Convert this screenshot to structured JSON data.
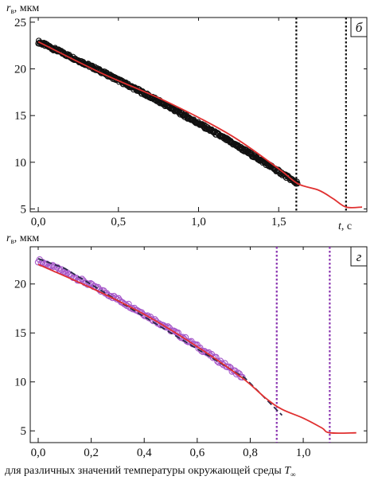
{
  "colors": {
    "black": "#111111",
    "red": "#e03030",
    "purple": "#a657c9",
    "purple_dark": "#8a34b0",
    "dashed_dark": "#2a2a4a"
  },
  "caption": {
    "text": "для различных значений температуры окружающей среды",
    "symbol": "T",
    "subscript": "∞"
  },
  "chart_data": [
    {
      "type": "scatter",
      "panel_label": "б",
      "ylabel_symbol": "r",
      "ylabel_subscript": "в",
      "ylabel_units": ", мкм",
      "xlabel_symbol": "t",
      "xlabel_units": ", с",
      "xlim": [
        -0.05,
        2.05
      ],
      "ylim": [
        4.7,
        25.5
      ],
      "x_ticks": [
        0.0,
        0.5,
        1.0,
        1.5
      ],
      "x_tick_labels": [
        "0,0",
        "0,5",
        "1,0",
        "1,5"
      ],
      "y_ticks": [
        5,
        10,
        15,
        20,
        25
      ],
      "y_tick_labels": [
        "5",
        "10",
        "15",
        "20",
        "25"
      ],
      "marker_color": "#111111",
      "points": {
        "t_start": 0.0,
        "t_end": 1.62,
        "r_start": 22.9,
        "r_end": 7.7,
        "curvature": 0.045
      },
      "model_curve": [
        [
          0.0,
          22.9
        ],
        [
          0.4,
          19.5
        ],
        [
          0.8,
          16.5
        ],
        [
          1.2,
          12.9
        ],
        [
          1.5,
          9.3
        ],
        [
          1.62,
          7.7
        ],
        [
          1.75,
          7.0
        ],
        [
          1.84,
          6.1
        ],
        [
          1.92,
          5.2
        ],
        [
          2.02,
          5.2
        ]
      ],
      "model_color": "#e03030",
      "vlines": [
        1.61,
        1.92
      ],
      "vline_color": "#111111"
    },
    {
      "type": "scatter",
      "panel_label": "г",
      "ylabel_symbol": "r",
      "ylabel_subscript": "в",
      "ylabel_units": ", мкм",
      "xlabel_symbol": "",
      "xlabel_units": "",
      "xlim": [
        -0.03,
        1.24
      ],
      "ylim": [
        3.8,
        23.8
      ],
      "x_ticks": [
        0.0,
        0.2,
        0.4,
        0.6,
        0.8,
        1.0
      ],
      "x_tick_labels": [
        "0,0",
        "0,2",
        "0,4",
        "0,6",
        "0,8",
        "1,0"
      ],
      "y_ticks": [
        5,
        10,
        15,
        20
      ],
      "y_tick_labels": [
        "5",
        "10",
        "15",
        "20"
      ],
      "marker_color": "#a657c9",
      "points": {
        "t_start": 0.0,
        "t_end": 0.77,
        "r_start": 22.4,
        "r_end": 10.5,
        "curvature": 0.06
      },
      "model_curve": [
        [
          0.0,
          22.0
        ],
        [
          0.2,
          19.6
        ],
        [
          0.4,
          16.9
        ],
        [
          0.6,
          13.6
        ],
        [
          0.77,
          10.4
        ],
        [
          0.86,
          8.3
        ],
        [
          0.92,
          7.2
        ],
        [
          1.0,
          6.3
        ],
        [
          1.07,
          5.3
        ],
        [
          1.1,
          4.8
        ],
        [
          1.2,
          4.8
        ]
      ],
      "model_color": "#e03030",
      "dashed_curve": [
        [
          0.0,
          22.6
        ],
        [
          0.1,
          21.6
        ],
        [
          0.78,
          10.4
        ],
        [
          0.92,
          6.6
        ]
      ],
      "dashed_color": "#2a2a4a",
      "vlines": [
        0.9,
        1.1
      ],
      "vline_color": "#8a34b0"
    }
  ]
}
